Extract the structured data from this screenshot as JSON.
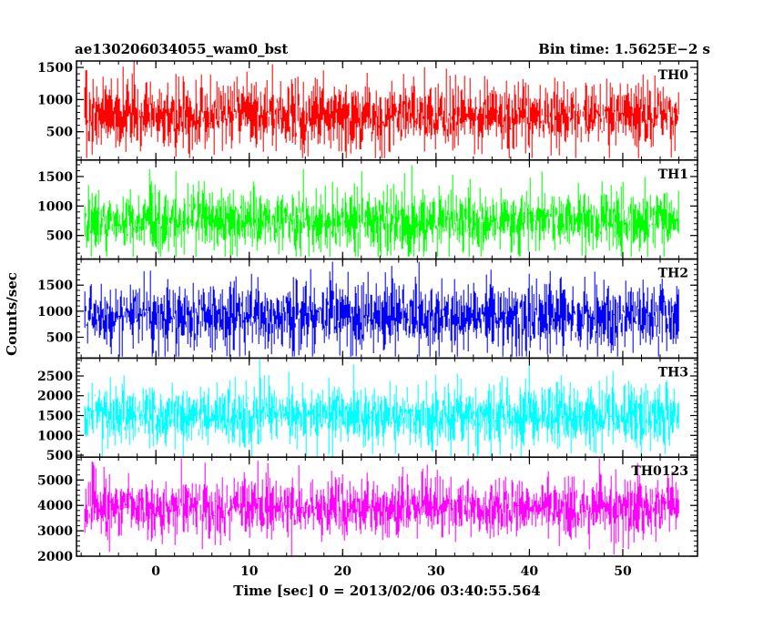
{
  "header": {
    "left_title": "ae130206034055_wam0_bst",
    "right_title": "Bin time: 1.5625E−2 s"
  },
  "chart_data": {
    "type": "line",
    "xlabel": "Time [sec] 0 = 2013/02/06 03:40:55.564",
    "ylabel": "Counts/sec",
    "xlim": [
      -8.5,
      58
    ],
    "x_ticks": [
      0,
      10,
      20,
      30,
      40,
      50
    ],
    "x_tick_labels": [
      "0",
      "10",
      "20",
      "30",
      "40",
      "50"
    ],
    "data_x_range": [
      -7.6,
      56.0
    ],
    "bin_time_s": 0.015625,
    "panels": [
      {
        "name": "TH0",
        "color": "#ff0000",
        "ylim": [
          60,
          1600
        ],
        "yticks": [
          500,
          1000,
          1500
        ],
        "ytick_labels": [
          "500",
          "1000",
          "1500"
        ],
        "mean": 750,
        "min": 90,
        "max": 1600,
        "spread": 220
      },
      {
        "name": "TH1",
        "color": "#00ff00",
        "ylim": [
          100,
          1780
        ],
        "yticks": [
          500,
          1000,
          1500
        ],
        "ytick_labels": [
          "500",
          "1000",
          "1500"
        ],
        "mean": 750,
        "min": 140,
        "max": 1720,
        "spread": 230
      },
      {
        "name": "TH2",
        "color": "#0000ff",
        "ylim": [
          100,
          2000
        ],
        "yticks": [
          500,
          1000,
          1500
        ],
        "ytick_labels": [
          "500",
          "1000",
          "1500"
        ],
        "mean": 900,
        "min": 130,
        "max": 1950,
        "spread": 270
      },
      {
        "name": "TH3",
        "color": "#00ffff",
        "ylim": [
          450,
          2950
        ],
        "yticks": [
          500,
          1000,
          1500,
          2000,
          2500
        ],
        "ytick_labels": [
          "500",
          "1000",
          "1500",
          "2000",
          "2500"
        ],
        "mean": 1500,
        "min": 450,
        "max": 2950,
        "spread": 330
      },
      {
        "name": "TH0123",
        "color": "#ff00ff",
        "ylim": [
          2000,
          5900
        ],
        "yticks": [
          2000,
          3000,
          4000,
          5000
        ],
        "ytick_labels": [
          "2000",
          "3000",
          "4000",
          "5000"
        ],
        "mean": 3900,
        "min": 2000,
        "max": 5850,
        "spread": 500
      }
    ]
  }
}
